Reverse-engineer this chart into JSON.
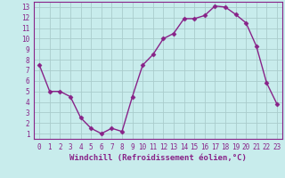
{
  "x": [
    0,
    1,
    2,
    3,
    4,
    5,
    6,
    7,
    8,
    9,
    10,
    11,
    12,
    13,
    14,
    15,
    16,
    17,
    18,
    19,
    20,
    21,
    22,
    23
  ],
  "y": [
    7.5,
    5.0,
    5.0,
    4.5,
    2.5,
    1.5,
    1.0,
    1.5,
    1.2,
    4.5,
    7.5,
    8.5,
    10.0,
    10.5,
    11.9,
    11.9,
    12.2,
    13.1,
    13.0,
    12.3,
    11.5,
    9.3,
    5.8,
    3.8
  ],
  "line_color": "#882288",
  "marker": "D",
  "marker_size": 2.5,
  "bg_color": "#c8ecec",
  "grid_color": "#aacccc",
  "xlabel": "Windchill (Refroidissement éolien,°C)",
  "xlim": [
    -0.5,
    23.5
  ],
  "ylim": [
    0.5,
    13.5
  ],
  "xticks": [
    0,
    1,
    2,
    3,
    4,
    5,
    6,
    7,
    8,
    9,
    10,
    11,
    12,
    13,
    14,
    15,
    16,
    17,
    18,
    19,
    20,
    21,
    22,
    23
  ],
  "yticks": [
    1,
    2,
    3,
    4,
    5,
    6,
    7,
    8,
    9,
    10,
    11,
    12,
    13
  ],
  "tick_color": "#882288",
  "tick_label_size": 5.5,
  "xlabel_size": 6.5,
  "label_color": "#882288",
  "spine_color": "#882288",
  "linewidth": 1.0
}
